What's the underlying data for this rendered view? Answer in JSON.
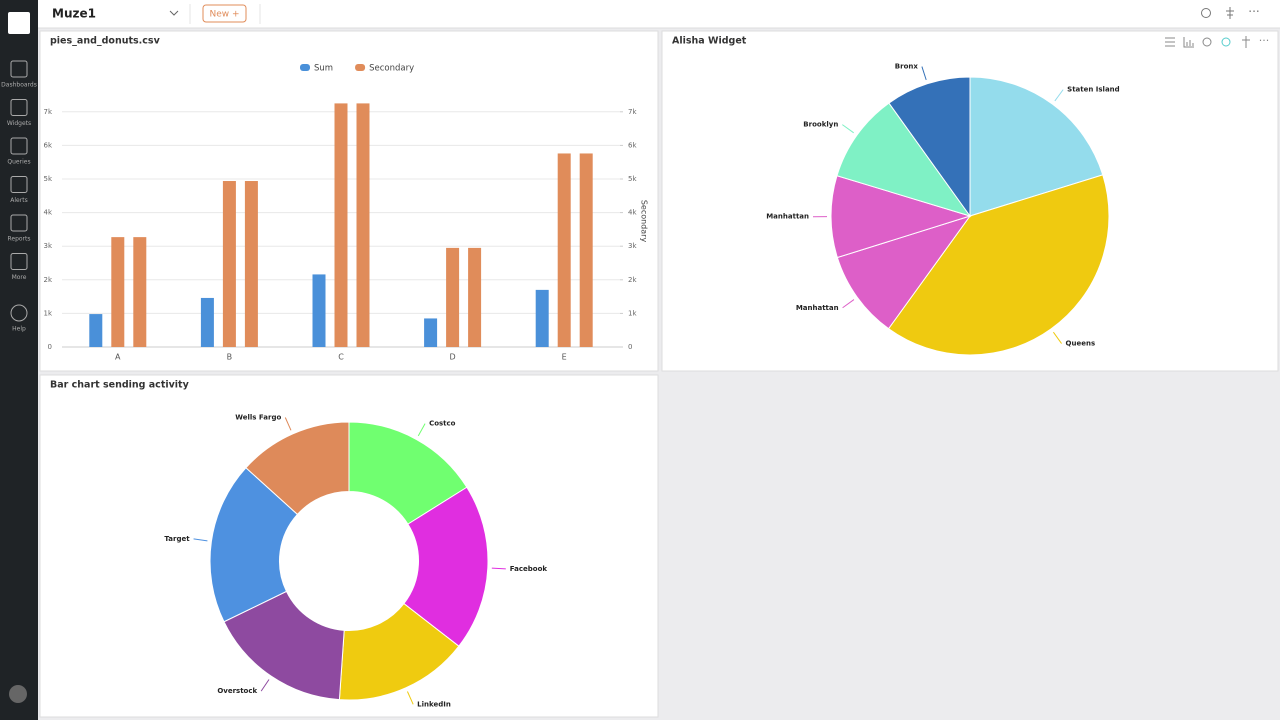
{
  "header": {
    "dashboard": "Muze1",
    "new_button": "New +"
  },
  "sidebar": {
    "items": [
      "Dashboards",
      "Widgets",
      "Queries",
      "Alerts",
      "Reports",
      "More",
      "Help"
    ]
  },
  "chart_data": [
    {
      "type": "bar",
      "title": "pies_and_donuts.csv",
      "categories": [
        "A",
        "B",
        "C",
        "D",
        "E"
      ],
      "series": [
        {
          "name": "Sum",
          "color": "#4a90d9",
          "values": [
            980,
            1460,
            2160,
            850,
            1700
          ]
        },
        {
          "name": "Secondary",
          "color": "#e08c5a",
          "values": [
            3270,
            4940,
            7250,
            2950,
            5760
          ]
        },
        {
          "color": "#e08c5a",
          "axis": "y2",
          "values": [
            3270,
            4940,
            7250,
            2950,
            5760
          ]
        }
      ],
      "ylim": [
        0,
        7500
      ],
      "yticks": [
        0,
        {
          "value": 1000,
          "label": "1k"
        },
        {
          "value": 2000,
          "label": "2k"
        },
        {
          "value": 3000,
          "label": "3k"
        },
        {
          "value": 4000,
          "label": "4k"
        },
        {
          "value": 5000,
          "label": "5k"
        },
        {
          "value": 6000,
          "label": "6k"
        },
        {
          "value": 7000,
          "label": "7k"
        }
      ],
      "y2lim": [
        0,
        7500
      ],
      "y2ticks": [
        0,
        {
          "value": 1000,
          "label": "1k"
        },
        {
          "value": 2000,
          "label": "2k"
        },
        {
          "value": 3000,
          "label": "3k"
        },
        {
          "value": 4000,
          "label": "4k"
        },
        {
          "value": 5000,
          "label": "5k"
        },
        {
          "value": 6000,
          "label": "6k"
        },
        {
          "value": 7000,
          "label": "7k"
        }
      ],
      "y2label": "Secondary",
      "grid": true,
      "legend": "top"
    },
    {
      "type": "pie",
      "title": "Alisha Widget",
      "categories": [
        "Staten Island",
        "Queens",
        "Manhattan",
        "Manhattan",
        "Brooklyn",
        "Bronx"
      ],
      "values": [
        20.2,
        39.7,
        10.2,
        9.5,
        10.4,
        9.9
      ],
      "colors": [
        "#94dcec",
        "#efca10",
        "#dd5fc8",
        "#dd5fc8",
        "#7ff1c5",
        "#3471b8"
      ]
    },
    {
      "type": "donut",
      "title": "Bar chart sending activity",
      "categories": [
        "Costco",
        "Facebook",
        "LinkedIn",
        "Overstock",
        "Target",
        "Wells Fargo"
      ],
      "values": [
        16.1,
        19.4,
        15.6,
        16.7,
        18.9,
        13.3
      ],
      "colors": [
        "#70ff70",
        "#e02ee0",
        "#efcb10",
        "#8e4aa0",
        "#4e91e0",
        "#de8a5a"
      ]
    }
  ]
}
